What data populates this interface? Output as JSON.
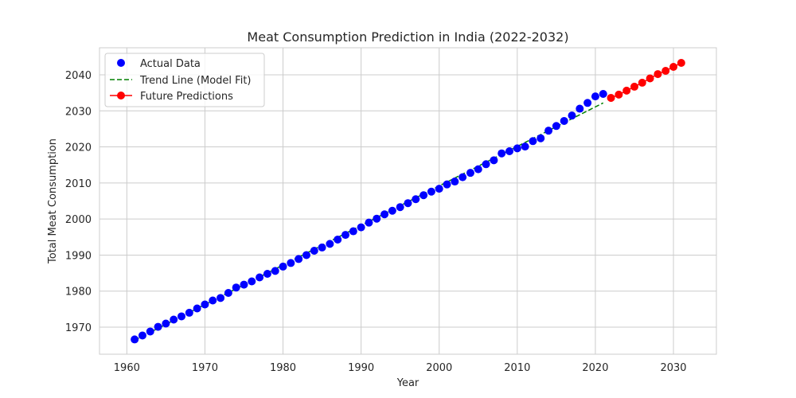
{
  "chart_data": {
    "type": "scatter",
    "title": "Meat Consumption Prediction in India (2022-2032)",
    "xlabel": "Year",
    "ylabel": "Total Meat Consumption",
    "xlim": [
      1956.5,
      2035.5
    ],
    "ylim": [
      1962.5,
      2047.5
    ],
    "xticks": [
      1960,
      1970,
      1980,
      1990,
      2000,
      2010,
      2020,
      2030
    ],
    "yticks": [
      1970,
      1980,
      1990,
      2000,
      2010,
      2020,
      2030,
      2040
    ],
    "grid": true,
    "legend_position": "top-left",
    "series": [
      {
        "name": "Actual Data",
        "kind": "scatter",
        "color": "#0000ff",
        "x": [
          1961,
          1962,
          1963,
          1964,
          1965,
          1966,
          1967,
          1968,
          1969,
          1970,
          1971,
          1972,
          1973,
          1974,
          1975,
          1976,
          1977,
          1978,
          1979,
          1980,
          1981,
          1982,
          1983,
          1984,
          1985,
          1986,
          1987,
          1988,
          1989,
          1990,
          1991,
          1992,
          1993,
          1994,
          1995,
          1996,
          1997,
          1998,
          1999,
          2000,
          2001,
          2002,
          2003,
          2004,
          2005,
          2006,
          2007,
          2008,
          2009,
          2010,
          2011,
          2012,
          2013,
          2014,
          2015,
          2016,
          2017,
          2018,
          2019,
          2020,
          2021
        ],
        "y": [
          1966.6,
          1967.7,
          1968.8,
          1970.1,
          1971.0,
          1972.1,
          1973.0,
          1974.0,
          1975.2,
          1976.3,
          1977.4,
          1978.1,
          1979.5,
          1981.0,
          1981.8,
          1982.7,
          1983.8,
          1984.8,
          1985.6,
          1986.8,
          1987.8,
          1988.9,
          1990.0,
          1991.2,
          1992.1,
          1993.1,
          1994.3,
          1995.6,
          1996.6,
          1997.7,
          1999.0,
          2000.1,
          2001.3,
          2002.3,
          2003.3,
          2004.4,
          2005.5,
          2006.6,
          2007.6,
          2008.4,
          2009.6,
          2010.4,
          2011.6,
          2012.8,
          2013.8,
          2015.2,
          2016.3,
          2018.2,
          2018.8,
          2019.6,
          2020.1,
          2021.6,
          2022.4,
          2024.5,
          2025.8,
          2027.2,
          2028.7,
          2030.6,
          2032.2,
          2034.0,
          2034.7
        ]
      },
      {
        "name": "Trend Line (Model Fit)",
        "kind": "line",
        "style": "dashed",
        "color": "#008000",
        "x": [
          1961,
          2021
        ],
        "y": [
          1966.4,
          2032.2
        ]
      },
      {
        "name": "Future Predictions",
        "kind": "line+markers",
        "color": "#ff0000",
        "x": [
          2022,
          2023,
          2024,
          2025,
          2026,
          2027,
          2028,
          2029,
          2030,
          2031
        ],
        "y": [
          2033.6,
          2034.5,
          2035.6,
          2036.7,
          2037.8,
          2039.0,
          2040.2,
          2041.1,
          2042.2,
          2043.3
        ]
      }
    ]
  }
}
